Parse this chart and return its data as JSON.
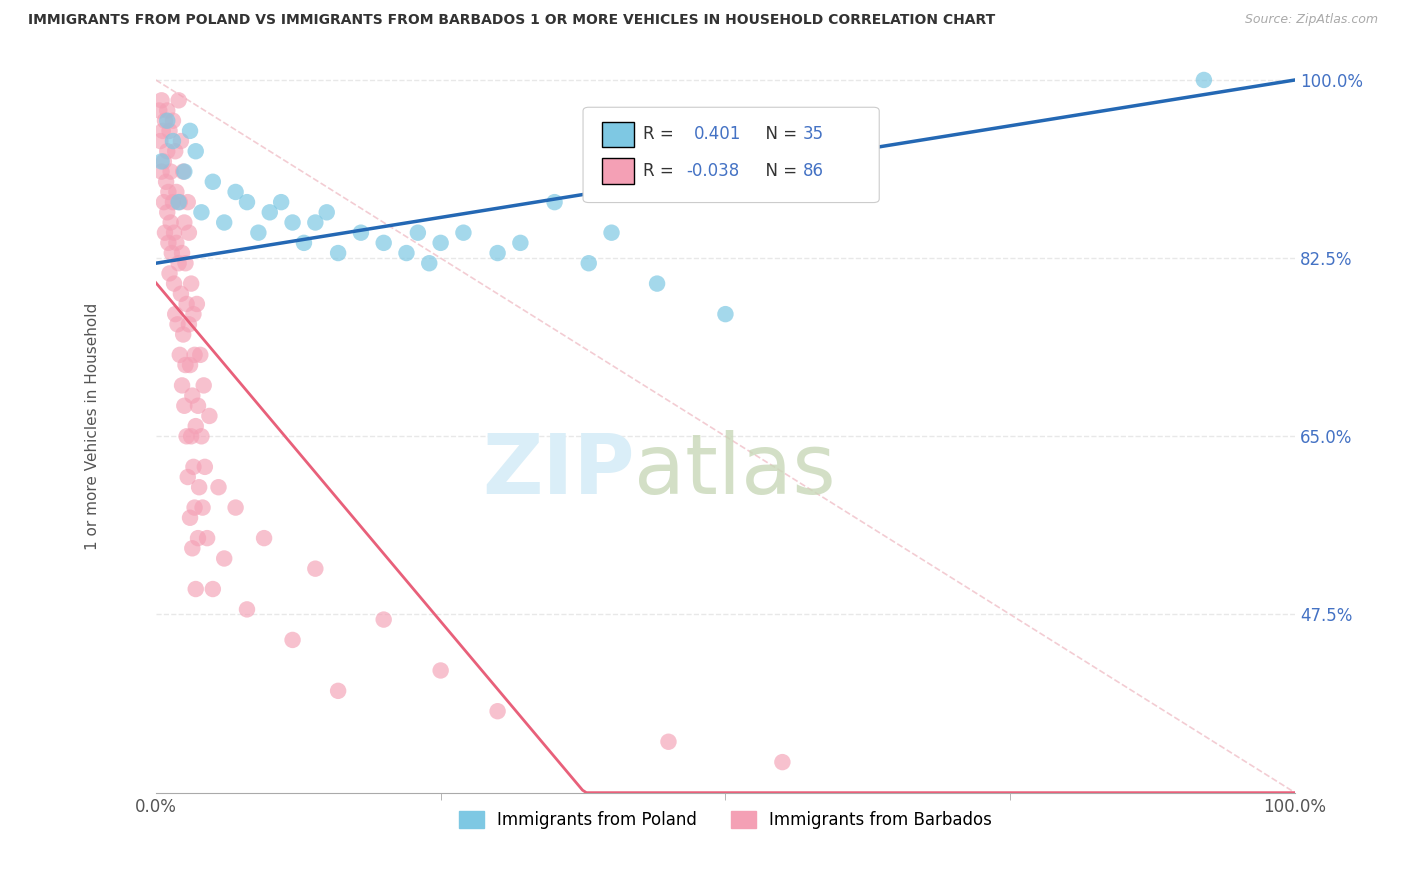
{
  "title": "IMMIGRANTS FROM POLAND VS IMMIGRANTS FROM BARBADOS 1 OR MORE VEHICLES IN HOUSEHOLD CORRELATION CHART",
  "source": "Source: ZipAtlas.com",
  "ylabel": "1 or more Vehicles in Household",
  "xlim": [
    0,
    100
  ],
  "ylim": [
    30,
    102
  ],
  "ytick_values": [
    100.0,
    82.5,
    65.0,
    47.5
  ],
  "ytick_labels": [
    "100.0%",
    "82.5%",
    "65.0%",
    "47.5%"
  ],
  "R_poland": 0.401,
  "N_poland": 35,
  "R_barbados": -0.038,
  "N_barbados": 86,
  "color_poland": "#7ec8e3",
  "color_barbados": "#f4a0b5",
  "color_trend_poland": "#2468b4",
  "color_trend_barbados": "#e8607a",
  "color_diag": "#f0c0c8",
  "background_color": "#ffffff",
  "grid_color": "#e8e8e8",
  "poland_x": [
    0.5,
    1.0,
    1.5,
    2.0,
    2.5,
    3.0,
    3.5,
    4.0,
    5.0,
    6.0,
    7.0,
    8.0,
    9.0,
    10.0,
    11.0,
    12.0,
    13.0,
    14.0,
    15.0,
    16.0,
    18.0,
    20.0,
    22.0,
    23.0,
    24.0,
    25.0,
    27.0,
    30.0,
    32.0,
    35.0,
    38.0,
    40.0,
    44.0,
    50.0,
    92.0
  ],
  "poland_y": [
    92,
    96,
    94,
    88,
    91,
    95,
    93,
    87,
    90,
    86,
    89,
    88,
    85,
    87,
    88,
    86,
    84,
    86,
    87,
    83,
    85,
    84,
    83,
    85,
    82,
    84,
    85,
    83,
    84,
    88,
    82,
    85,
    80,
    77,
    100
  ],
  "barbados_x": [
    0.3,
    0.4,
    0.5,
    0.5,
    0.6,
    0.7,
    0.7,
    0.8,
    0.8,
    0.9,
    1.0,
    1.0,
    1.0,
    1.1,
    1.1,
    1.2,
    1.2,
    1.3,
    1.3,
    1.4,
    1.5,
    1.5,
    1.6,
    1.6,
    1.7,
    1.7,
    1.8,
    1.8,
    1.9,
    2.0,
    2.0,
    2.1,
    2.1,
    2.2,
    2.2,
    2.3,
    2.3,
    2.4,
    2.4,
    2.5,
    2.5,
    2.6,
    2.6,
    2.7,
    2.7,
    2.8,
    2.8,
    2.9,
    2.9,
    3.0,
    3.0,
    3.1,
    3.1,
    3.2,
    3.2,
    3.3,
    3.3,
    3.4,
    3.4,
    3.5,
    3.5,
    3.6,
    3.7,
    3.7,
    3.8,
    3.9,
    4.0,
    4.1,
    4.2,
    4.3,
    4.5,
    4.7,
    5.0,
    5.5,
    6.0,
    7.0,
    8.0,
    9.5,
    12.0,
    14.0,
    16.0,
    20.0,
    25.0,
    30.0,
    45.0,
    55.0
  ],
  "barbados_y": [
    97,
    94,
    98,
    91,
    95,
    88,
    92,
    96,
    85,
    90,
    97,
    87,
    93,
    84,
    89,
    95,
    81,
    86,
    91,
    83,
    96,
    88,
    80,
    85,
    93,
    77,
    84,
    89,
    76,
    98,
    82,
    73,
    88,
    79,
    94,
    70,
    83,
    75,
    91,
    68,
    86,
    72,
    82,
    65,
    78,
    88,
    61,
    76,
    85,
    57,
    72,
    80,
    65,
    54,
    69,
    77,
    62,
    58,
    73,
    50,
    66,
    78,
    55,
    68,
    60,
    73,
    65,
    58,
    70,
    62,
    55,
    67,
    50,
    60,
    53,
    58,
    48,
    55,
    45,
    52,
    40,
    47,
    42,
    38,
    35,
    33
  ]
}
